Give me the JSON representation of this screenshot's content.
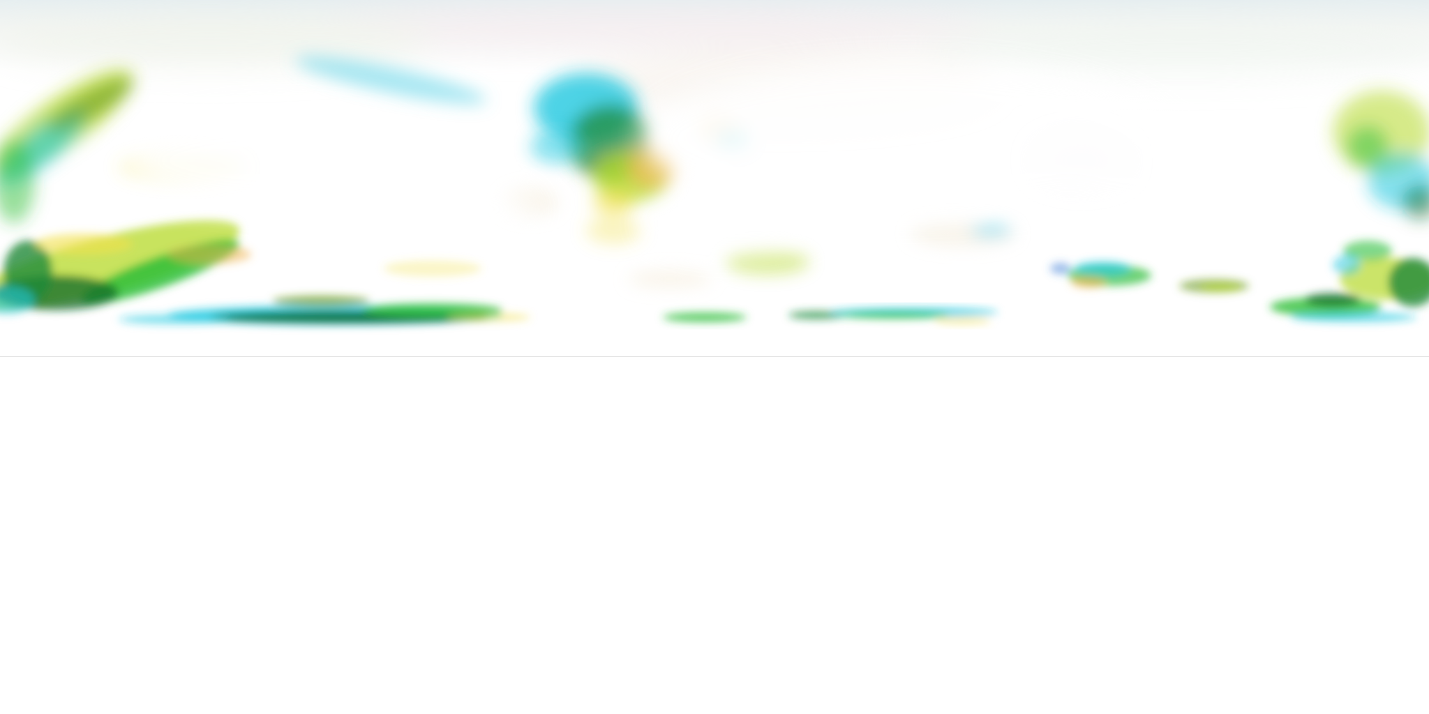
{
  "scene": {
    "kind": "equirectangular-panorama",
    "description_visible_text": "",
    "palette": {
      "sky_top": "#e6eef0",
      "haze": "#f7f3ee",
      "white": "#ffffff",
      "cyan": "#1ec8e0",
      "teal": "#19b8a8",
      "green": "#2fbf3a",
      "dark_green": "#0f6a2a",
      "lime": "#b5d92a",
      "yellow": "#f2e04a",
      "orange": "#f0b24a",
      "blue": "#3a7ad8",
      "pink": "#f3c6d8"
    },
    "regions": {
      "upper_band": "colorful-blurred-panorama",
      "lower_band": "blank-white"
    }
  }
}
